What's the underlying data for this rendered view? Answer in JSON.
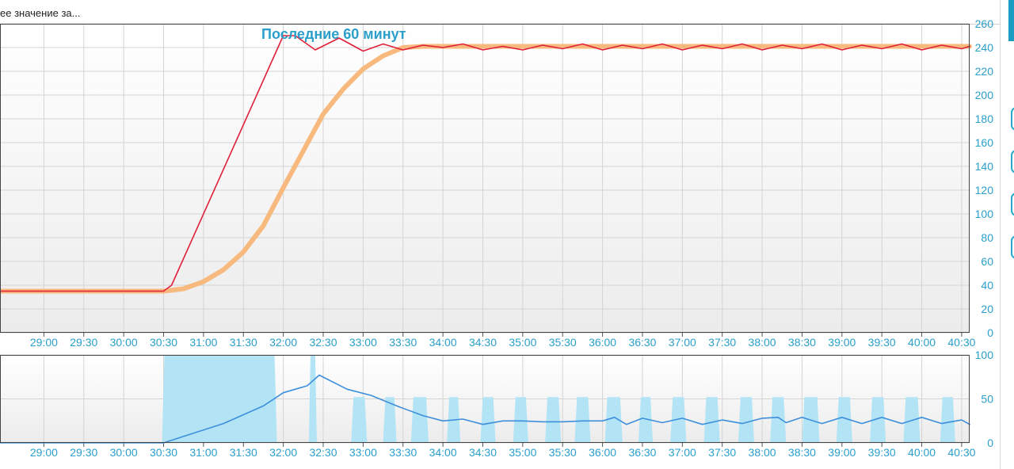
{
  "header": {
    "text": "ее значение за..."
  },
  "chart_data": [
    {
      "type": "line",
      "title": "Последние 60 минут",
      "x_unit": "minutes",
      "x_ticks": [
        "29:00",
        "29:30",
        "30:00",
        "30:30",
        "31:00",
        "31:30",
        "32:00",
        "32:30",
        "33:00",
        "33:30",
        "34:00",
        "34:30",
        "35:00",
        "35:30",
        "36:00",
        "36:30",
        "37:00",
        "37:30",
        "38:00",
        "38:30",
        "39:00",
        "39:30",
        "40:00",
        "40:30"
      ],
      "xlim": [
        28.45,
        40.6
      ],
      "ylim": [
        0,
        260
      ],
      "y_ticks": [
        "0",
        "20",
        "40",
        "60",
        "80",
        "100",
        "120",
        "140",
        "160",
        "180",
        "200",
        "220",
        "240",
        "260"
      ],
      "grid": true,
      "series": [
        {
          "color": "#f7b97e",
          "x": [
            28.45,
            30.5,
            30.75,
            31.0,
            31.25,
            31.5,
            31.75,
            32.0,
            32.25,
            32.5,
            32.75,
            33.0,
            33.25,
            33.5,
            33.75,
            34.0,
            40.6
          ],
          "y": [
            35,
            35,
            37,
            43,
            53,
            68,
            90,
            122,
            153,
            184,
            205,
            222,
            233,
            240,
            241,
            241,
            241
          ]
        },
        {
          "color": "#e0203a",
          "x": [
            28.45,
            30.5,
            30.6,
            32.0,
            32.15,
            32.4,
            32.7,
            33.0,
            33.25,
            33.5,
            33.75,
            34.0,
            34.25,
            34.5,
            34.75,
            35.0,
            35.25,
            35.5,
            35.75,
            36.0,
            36.25,
            36.5,
            36.75,
            37.0,
            37.25,
            37.5,
            37.75,
            38.0,
            38.25,
            38.5,
            38.75,
            39.0,
            39.25,
            39.5,
            39.75,
            40.0,
            40.25,
            40.5,
            40.6
          ],
          "y": [
            35,
            35,
            40,
            250,
            250,
            238,
            248,
            237,
            243,
            238,
            242,
            240,
            243,
            238,
            241,
            238,
            242,
            239,
            243,
            238,
            242,
            239,
            243,
            238,
            242,
            239,
            243,
            238,
            242,
            239,
            243,
            238,
            242,
            239,
            243,
            238,
            242,
            239,
            241
          ]
        }
      ]
    },
    {
      "type": "area",
      "x_ticks": [
        "29:00",
        "29:30",
        "30:00",
        "30:30",
        "31:00",
        "31:30",
        "32:00",
        "32:30",
        "33:00",
        "33:30",
        "34:00",
        "34:30",
        "35:00",
        "35:30",
        "36:00",
        "36:30",
        "37:00",
        "37:30",
        "38:00",
        "38:30",
        "39:00",
        "39:30",
        "40:00",
        "40:30"
      ],
      "xlim": [
        28.45,
        40.6
      ],
      "ylim": [
        0,
        100
      ],
      "y_ticks": [
        "0",
        "50",
        "100"
      ],
      "grid": true,
      "bar_color": "#b2e4f5",
      "bars": [
        [
          30.48,
          31.92
        ],
        [
          32.32,
          32.42
        ],
        [
          32.85,
          33.05
        ],
        [
          33.25,
          33.42
        ],
        [
          33.6,
          33.82
        ],
        [
          34.05,
          34.22
        ],
        [
          34.47,
          34.66
        ],
        [
          34.88,
          35.07
        ],
        [
          35.28,
          35.48
        ],
        [
          35.65,
          35.85
        ],
        [
          36.03,
          36.25
        ],
        [
          36.45,
          36.63
        ],
        [
          36.85,
          37.05
        ],
        [
          37.27,
          37.47
        ],
        [
          37.7,
          37.9
        ],
        [
          38.1,
          38.3
        ],
        [
          38.5,
          38.72
        ],
        [
          38.93,
          39.13
        ],
        [
          39.35,
          39.55
        ],
        [
          39.77,
          39.98
        ],
        [
          40.23,
          40.42
        ]
      ],
      "series": [
        {
          "color": "#3d8fdc",
          "x": [
            28.45,
            30.5,
            31.25,
            31.75,
            32.0,
            32.3,
            32.45,
            32.8,
            33.1,
            33.45,
            33.75,
            34.0,
            34.25,
            34.5,
            34.75,
            35.0,
            35.25,
            35.5,
            35.75,
            36.0,
            36.15,
            36.3,
            36.5,
            36.75,
            37.0,
            37.25,
            37.5,
            37.75,
            38.0,
            38.2,
            38.3,
            38.5,
            38.75,
            39.0,
            39.25,
            39.5,
            39.75,
            40.0,
            40.25,
            40.5,
            40.6
          ],
          "y": [
            0,
            0,
            22,
            42,
            57,
            65,
            77,
            61,
            54,
            41,
            31,
            25,
            27,
            21,
            25,
            25,
            24,
            24,
            25,
            25,
            29,
            21,
            28,
            23,
            28,
            21,
            26,
            22,
            28,
            29,
            23,
            29,
            22,
            29,
            22,
            29,
            22,
            29,
            22,
            26,
            21
          ]
        }
      ]
    }
  ]
}
